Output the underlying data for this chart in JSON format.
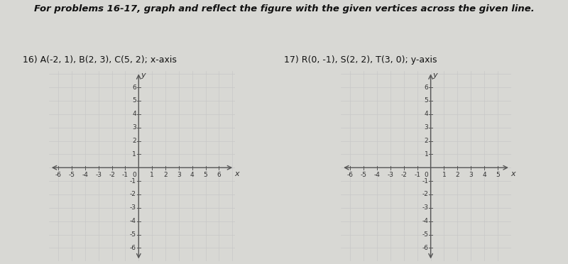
{
  "title": "For problems 16-17, graph and reflect the figure with the given vertices across the given line.",
  "problem16_label": "16) A(-2, 1), B(2, 3), C(5, 2); x-axis",
  "problem17_label": "17) R(0, -1), S(2, 2), T(3, 0); y-axis",
  "grid_color": "#c8c8c8",
  "axis_color": "#555555",
  "grid_bg_color": "#efefef",
  "fig_bg_color": "#d8d8d4",
  "xlim1": [
    -6.7,
    7.2
  ],
  "ylim1": [
    -7.0,
    7.2
  ],
  "xlim2": [
    -6.7,
    6.0
  ],
  "ylim2": [
    -7.0,
    7.2
  ],
  "xticks1": [
    -6,
    -5,
    -4,
    -3,
    -2,
    -1,
    1,
    2,
    3,
    4,
    5,
    6
  ],
  "yticks1": [
    -6,
    -5,
    -4,
    -3,
    -2,
    -1,
    1,
    2,
    3,
    4,
    5,
    6
  ],
  "xticks2": [
    -6,
    -5,
    -4,
    -3,
    -2,
    -1,
    1,
    2,
    3,
    4,
    5
  ],
  "yticks2": [
    -6,
    -5,
    -4,
    -3,
    -2,
    -1,
    1,
    2,
    3,
    4,
    5,
    6
  ],
  "title_fontsize": 9.5,
  "label_fontsize": 9,
  "tick_fontsize": 6.5
}
